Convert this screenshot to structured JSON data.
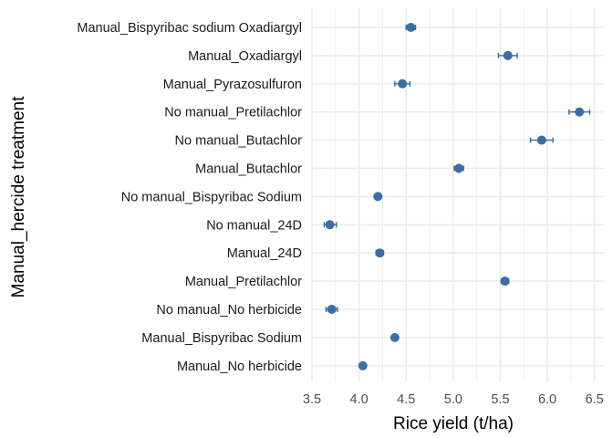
{
  "chart_data": {
    "type": "scatter",
    "title": "",
    "xlabel": "Rice yield (t/ha)",
    "ylabel": "Manual_hercide treatment",
    "xlim": [
      3.5,
      6.6
    ],
    "xticks": [
      "3.5",
      "4.0",
      "4.5",
      "5.0",
      "5.5",
      "6.0",
      "6.5"
    ],
    "grid": true,
    "legend": "none",
    "point_color": "#3A6EA5",
    "grid_color": "#EBEBEB",
    "categories": [
      "Manual_Bispyribac sodium  Oxadiargyl",
      "Manual_Oxadiargyl",
      "Manual_Pyrazosulfuron",
      "No manual_Pretilachlor",
      "No manual_Butachlor",
      "Manual_Butachlor",
      "No manual_Bispyribac Sodium",
      "No manual_24D",
      "Manual_24D",
      "Manual_Pretilachlor",
      "No manual_No herbicide",
      "Manual_Bispyribac Sodium",
      "Manual_No herbicide"
    ],
    "series": [
      {
        "values": [
          4.55,
          5.58,
          4.46,
          6.34,
          5.94,
          5.06,
          4.2,
          3.69,
          4.22,
          5.55,
          3.71,
          4.38,
          4.04
        ],
        "error_low": [
          4.5,
          5.48,
          4.38,
          6.23,
          5.82,
          5.01,
          4.18,
          3.63,
          4.18,
          5.51,
          3.65,
          4.35,
          4.02
        ],
        "error_high": [
          4.6,
          5.68,
          4.54,
          6.45,
          6.06,
          5.11,
          4.22,
          3.76,
          4.26,
          5.59,
          3.77,
          4.41,
          4.06
        ]
      }
    ]
  }
}
